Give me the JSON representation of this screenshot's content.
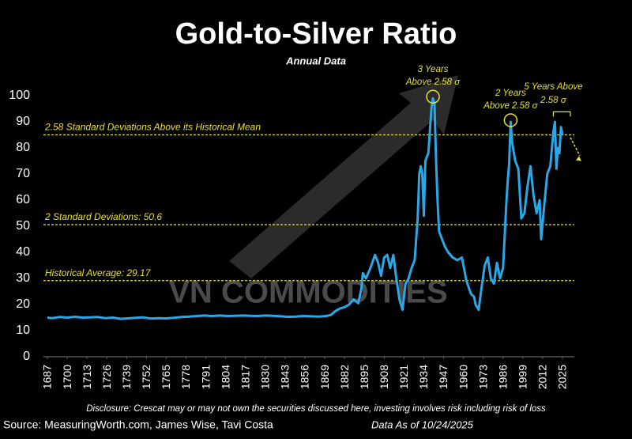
{
  "chart_data": {
    "type": "line",
    "title": "Gold-to-Silver Ratio",
    "subtitle": "Annual Data",
    "x": [
      1687,
      1690,
      1695,
      1700,
      1705,
      1710,
      1715,
      1720,
      1725,
      1730,
      1735,
      1740,
      1745,
      1750,
      1755,
      1760,
      1765,
      1770,
      1775,
      1780,
      1785,
      1790,
      1795,
      1800,
      1805,
      1810,
      1815,
      1820,
      1825,
      1830,
      1835,
      1840,
      1845,
      1850,
      1855,
      1860,
      1865,
      1870,
      1873,
      1876,
      1879,
      1882,
      1885,
      1888,
      1891,
      1893,
      1894,
      1896,
      1899,
      1902,
      1904,
      1906,
      1908,
      1910,
      1912,
      1914,
      1916,
      1918,
      1920,
      1922,
      1924,
      1926,
      1928,
      1930,
      1931,
      1932,
      1933,
      1934,
      1935,
      1937,
      1939,
      1940,
      1941,
      1942,
      1943,
      1944,
      1946,
      1948,
      1950,
      1953,
      1956,
      1959,
      1962,
      1965,
      1967,
      1968,
      1970,
      1972,
      1974,
      1976,
      1978,
      1980,
      1982,
      1984,
      1986,
      1988,
      1989,
      1990,
      1991,
      1992,
      1994,
      1996,
      1998,
      2000,
      2002,
      2004,
      2006,
      2008,
      2010,
      2011,
      2013,
      2015,
      2017,
      2019,
      2020,
      2021,
      2022,
      2023,
      2024,
      2025
    ],
    "values": [
      15,
      14.8,
      15.2,
      15,
      15.3,
      15,
      15.1,
      15.2,
      14.8,
      15,
      14.5,
      14.7,
      14.9,
      15.1,
      14.6,
      14.8,
      14.7,
      14.9,
      15.2,
      15.4,
      15.6,
      15.8,
      15.6,
      15.8,
      15.6,
      15.7,
      15.8,
      15.7,
      15.6,
      15.8,
      15.7,
      15.5,
      15.3,
      15.4,
      15.6,
      15.5,
      15.4,
      15.6,
      16,
      17.5,
      18.5,
      19,
      20,
      22,
      20.5,
      26,
      32,
      30,
      34,
      39,
      36,
      31,
      38,
      39,
      34,
      39,
      30,
      22,
      18,
      28,
      30,
      34,
      37,
      53,
      70,
      73,
      70,
      54,
      75,
      78,
      95,
      99,
      97,
      76,
      60,
      48,
      45,
      42,
      40,
      38,
      37,
      38,
      29,
      24,
      23,
      20,
      18,
      27,
      35,
      38,
      30,
      28,
      36,
      30,
      34,
      57,
      67,
      74,
      90,
      82,
      75,
      72,
      53,
      55,
      65,
      73,
      62,
      55,
      60,
      45,
      58,
      70,
      73,
      86,
      90,
      72,
      80,
      78,
      88,
      85
    ],
    "color": "#2aa7e6",
    "xlim": [
      1687,
      2025
    ],
    "xticks": [
      1687,
      1700,
      1713,
      1726,
      1739,
      1752,
      1765,
      1778,
      1791,
      1804,
      1817,
      1830,
      1843,
      1856,
      1869,
      1882,
      1895,
      1908,
      1921,
      1934,
      1947,
      1960,
      1973,
      1986,
      1999,
      2012,
      2025
    ],
    "ylim": [
      0,
      100
    ],
    "yticks": [
      0,
      10,
      20,
      30,
      40,
      50,
      60,
      70,
      80,
      90,
      100
    ],
    "reference_lines": [
      {
        "value": 85,
        "label": "2.58 Standard Deviations Above its Historical Mean"
      },
      {
        "value": 50.6,
        "label": "2 Standard Deviations: 50.6"
      },
      {
        "value": 29.17,
        "label": "Historical Average: 29.17"
      }
    ],
    "annotations": [
      [
        "3 Years",
        "Above 2.58 σ"
      ],
      [
        "2 Years",
        "Above 2.58 σ"
      ],
      [
        "5 Years Above",
        "2.58 σ"
      ]
    ],
    "watermark": "VN COMMODITIES",
    "disclosure": "Disclosure: Crescat may or may not own the securities discussed here, investing involves risk including risk of loss",
    "source": "Source: MeasuringWorth.com, James Wise, Tavi Costa",
    "data_date": "Data As of 10/24/2025"
  }
}
